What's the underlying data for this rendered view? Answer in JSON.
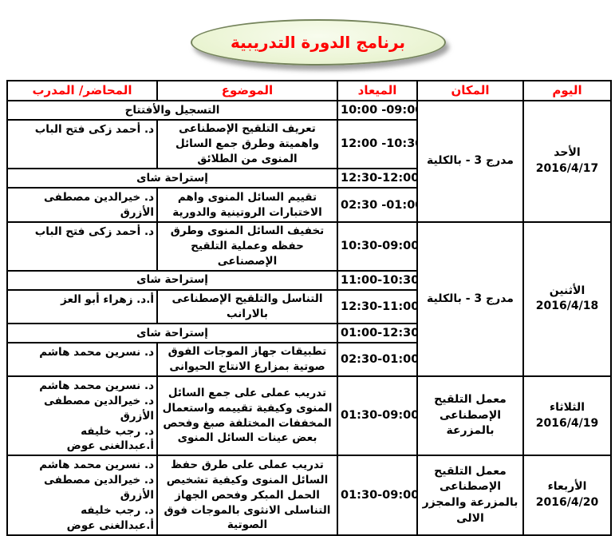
{
  "title": "برنامج الدورة التدريبية",
  "table": {
    "headers": {
      "day": "اليوم",
      "place": "المكان",
      "time": "الميعاد",
      "subject": "الموضوع",
      "lecturer": "المحاضر/ المدرب"
    },
    "days": [
      {
        "day": "الأحد",
        "date": "2016/4/17",
        "place": "مدرج 3 - بالكلية",
        "sessions": [
          {
            "subject": "التسجيل والأفتتاح",
            "time": "10:00 -09:00",
            "lecturer": ""
          },
          {
            "subject": "تعريف التلقيح الإصطناعى واهميتة وطرق جمع السائل المنوى من الطلائق",
            "time": "12:00 -10:30",
            "lecturer": "د. أحمد زكى فتح الباب"
          },
          {
            "subject": "إستراحة شاى",
            "time": "12:30-12:00",
            "lecturer": ""
          },
          {
            "subject": "تقييم السائل المنوى واهم الاختبارات الروتينية والدورية",
            "time": "02:30 -01:00",
            "lecturer": "د. خيرالدين مصطفى الأزرق"
          }
        ]
      },
      {
        "day": "الأثنين",
        "date": "2016/4/18",
        "place": "مدرج 3 - بالكلية",
        "sessions": [
          {
            "subject": "تخفيف السائل المنوى وطرق حفظه وعملية التلقيح الإصصناعى",
            "time": "10:30-09:00",
            "lecturer": "د. أحمد زكى فتح الباب"
          },
          {
            "subject": "إستراحة شاى",
            "time": "11:00-10:30",
            "lecturer": ""
          },
          {
            "subject": "التناسل والتلقيح الإصطناعى بالارانب",
            "time": "12:30-11:00",
            "lecturer": "أ.د. زهراء أبو العز"
          },
          {
            "subject": "إستراحة شاى",
            "time": "01:00-12:30",
            "lecturer": ""
          },
          {
            "subject": "تطبيقات جهاز الموجات الفوق صوتية بمزارع الانتاج الحيوانى",
            "time": "02:30-01:00",
            "lecturer": "د. نسرين محمد هاشم"
          }
        ]
      },
      {
        "day": "الثلاثاء",
        "date": "2016/4/19",
        "place": "معمل التلقيح الإصطناعى بالمزرعة",
        "sessions": [
          {
            "subject": "تدريب عملى على جمع السائل المنوى وكيفية تقييمه واستعمال المخففات المختلفة صبغ وفحص بعض عينات السائل المنوى",
            "time": "01:30-09:00",
            "lecturer": [
              "د. نسرين محمد هاشم",
              "د. خيرالدين مصطفى الأزرق",
              "د. رجب خليفه",
              "أ.عبدالغنى عوض"
            ]
          }
        ]
      },
      {
        "day": "الأربعاء",
        "date": "2016/4/20",
        "place": "معمل التلقيح الإصطناعى بالمزرعة والمجزر الالى",
        "sessions": [
          {
            "subject": "تدريب عملى على طرق حفظ السائل المنوى وكيفية تشخيص الحمل المبكر وفحص الجهاز التناسلى الانثوى بالموجات فوق الصوتية",
            "time": "01:30-09:00",
            "lecturer": [
              "د. نسرين محمد هاشم",
              "د. خيرالدين مصطفى الأزرق",
              "د. رجب خليفه",
              "أ.عبدالغنى عوض"
            ]
          }
        ]
      }
    ]
  },
  "colors": {
    "header_text": "#ff0000",
    "title_text": "#ff0000",
    "banner_fill": "#ecf5d6",
    "banner_border": "#75845c",
    "table_border": "#000000"
  }
}
